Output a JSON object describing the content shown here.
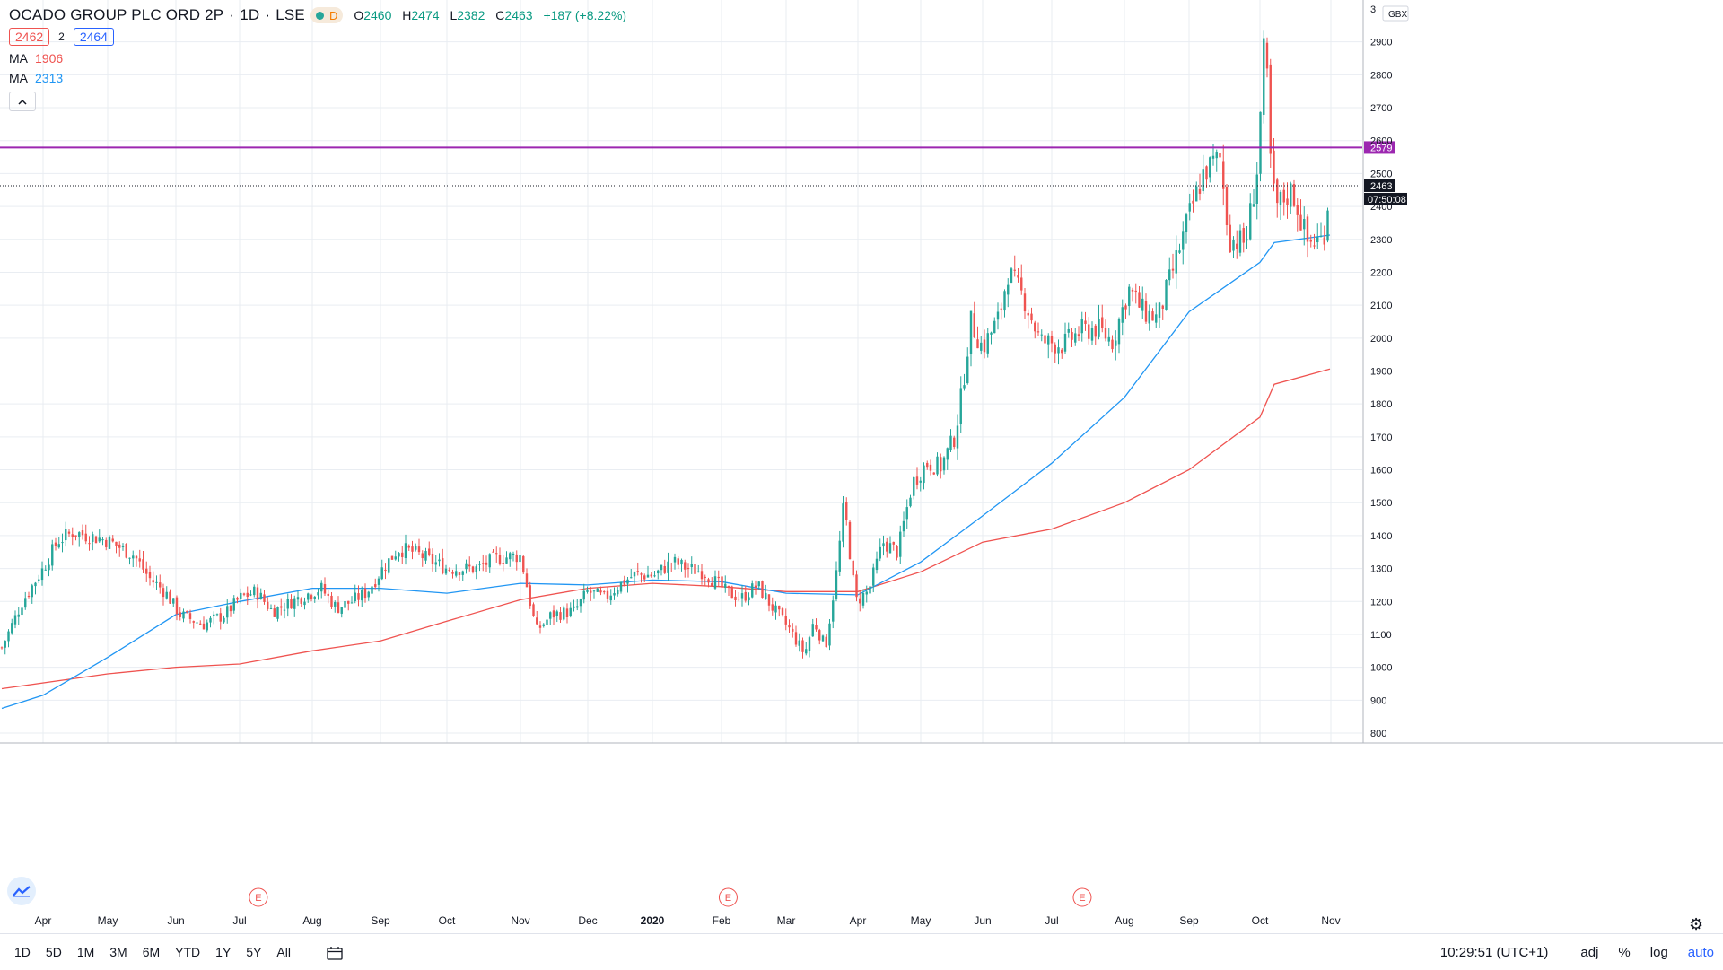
{
  "header": {
    "title": "OCADO GROUP PLC ORD 2P",
    "interval": "1D",
    "exchange": "LSE",
    "status_letter": "D",
    "ohlc": {
      "o_label": "O",
      "o": "2460",
      "h_label": "H",
      "h": "2474",
      "l_label": "L",
      "l": "2382",
      "c_label": "C",
      "c": "2463",
      "change": "+187 (+8.22%)"
    },
    "bid": "2462",
    "spread": "2",
    "ask": "2464"
  },
  "indicators": [
    {
      "label": "MA",
      "value": "1906",
      "color": "#ef5350"
    },
    {
      "label": "MA",
      "value": "2313",
      "color": "#2196f3"
    }
  ],
  "price_axis": {
    "currency": "GBX",
    "clipped_top_label": "3",
    "ticks": [
      "800",
      "900",
      "1000",
      "1100",
      "1200",
      "1300",
      "1400",
      "1500",
      "1600",
      "1700",
      "1800",
      "1900",
      "2000",
      "2100",
      "2200",
      "2300",
      "2400",
      "2500",
      "2600",
      "2700",
      "2800",
      "2900"
    ],
    "last_price_label": "2463",
    "countdown": "07:50:08",
    "hline_label": "2579"
  },
  "time_axis": {
    "labels": [
      "Apr",
      "May",
      "Jun",
      "Jul",
      "Aug",
      "Sep",
      "Oct",
      "Nov",
      "Dec",
      "2020",
      "Feb",
      "Mar",
      "Apr",
      "May",
      "Jun",
      "Jul",
      "Aug",
      "Sep",
      "Oct",
      "Nov"
    ]
  },
  "earnings_marker": "E",
  "toolbar": {
    "ranges": [
      "1D",
      "5D",
      "1M",
      "3M",
      "6M",
      "YTD",
      "1Y",
      "5Y",
      "All"
    ],
    "clock": "10:29:51 (UTC+1)",
    "adj": "adj",
    "percent": "%",
    "log": "log",
    "auto": "auto"
  },
  "colors": {
    "up": "#26a69a",
    "down": "#ef5350",
    "ma_fast": "#2196f3",
    "ma_slow": "#ef5350",
    "hline": "#9c27b0",
    "grid": "#e9edf2"
  },
  "chart_data": {
    "type": "candlestick",
    "symbol": "OCADO GROUP PLC ORD 2P",
    "ylim": [
      770,
      3000
    ],
    "x_labels": [
      "Apr",
      "May",
      "Jun",
      "Jul",
      "Aug",
      "Sep",
      "Oct",
      "Nov",
      "Dec",
      "2020",
      "Feb",
      "Mar",
      "Apr",
      "May",
      "Jun",
      "Jul",
      "Aug",
      "Sep",
      "Oct",
      "Nov"
    ],
    "close_path": [
      {
        "x": "2019-03-18",
        "y": 1060
      },
      {
        "x": "2019-03-25",
        "y": 1200
      },
      {
        "x": "2019-04-01",
        "y": 1300
      },
      {
        "x": "2019-04-08",
        "y": 1385
      },
      {
        "x": "2019-04-15",
        "y": 1410
      },
      {
        "x": "2019-04-22",
        "y": 1400
      },
      {
        "x": "2019-05-01",
        "y": 1385
      },
      {
        "x": "2019-05-13",
        "y": 1340
      },
      {
        "x": "2019-05-20",
        "y": 1270
      },
      {
        "x": "2019-05-27",
        "y": 1230
      },
      {
        "x": "2019-06-03",
        "y": 1160
      },
      {
        "x": "2019-06-14",
        "y": 1130
      },
      {
        "x": "2019-06-24",
        "y": 1160
      },
      {
        "x": "2019-07-01",
        "y": 1210
      },
      {
        "x": "2019-07-08",
        "y": 1230
      },
      {
        "x": "2019-07-15",
        "y": 1170
      },
      {
        "x": "2019-07-26",
        "y": 1210
      },
      {
        "x": "2019-08-05",
        "y": 1240
      },
      {
        "x": "2019-08-12",
        "y": 1180
      },
      {
        "x": "2019-08-19",
        "y": 1200
      },
      {
        "x": "2019-08-26",
        "y": 1230
      },
      {
        "x": "2019-09-02",
        "y": 1300
      },
      {
        "x": "2019-09-09",
        "y": 1360
      },
      {
        "x": "2019-09-16",
        "y": 1350
      },
      {
        "x": "2019-10-01",
        "y": 1300
      },
      {
        "x": "2019-10-14",
        "y": 1300
      },
      {
        "x": "2019-10-21",
        "y": 1330
      },
      {
        "x": "2019-11-01",
        "y": 1340
      },
      {
        "x": "2019-11-08",
        "y": 1110
      },
      {
        "x": "2019-11-15",
        "y": 1160
      },
      {
        "x": "2019-11-25",
        "y": 1170
      },
      {
        "x": "2019-12-01",
        "y": 1230
      },
      {
        "x": "2019-12-09",
        "y": 1210
      },
      {
        "x": "2019-12-16",
        "y": 1250
      },
      {
        "x": "2019-12-23",
        "y": 1280
      },
      {
        "x": "2020-01-02",
        "y": 1280
      },
      {
        "x": "2020-01-10",
        "y": 1320
      },
      {
        "x": "2020-01-17",
        "y": 1300
      },
      {
        "x": "2020-01-24",
        "y": 1290
      },
      {
        "x": "2020-02-03",
        "y": 1230
      },
      {
        "x": "2020-02-10",
        "y": 1210
      },
      {
        "x": "2020-02-17",
        "y": 1250
      },
      {
        "x": "2020-02-24",
        "y": 1180
      },
      {
        "x": "2020-03-02",
        "y": 1120
      },
      {
        "x": "2020-03-09",
        "y": 1040
      },
      {
        "x": "2020-03-13",
        "y": 1140
      },
      {
        "x": "2020-03-18",
        "y": 1060
      },
      {
        "x": "2020-03-23",
        "y": 1300
      },
      {
        "x": "2020-03-26",
        "y": 1500
      },
      {
        "x": "2020-03-31",
        "y": 1200
      },
      {
        "x": "2020-04-06",
        "y": 1230
      },
      {
        "x": "2020-04-13",
        "y": 1380
      },
      {
        "x": "2020-04-20",
        "y": 1350
      },
      {
        "x": "2020-04-27",
        "y": 1560
      },
      {
        "x": "2020-05-04",
        "y": 1620
      },
      {
        "x": "2020-05-11",
        "y": 1610
      },
      {
        "x": "2020-05-18",
        "y": 1700
      },
      {
        "x": "2020-05-22",
        "y": 1850
      },
      {
        "x": "2020-05-26",
        "y": 2050
      },
      {
        "x": "2020-06-01",
        "y": 1970
      },
      {
        "x": "2020-06-08",
        "y": 2060
      },
      {
        "x": "2020-06-12",
        "y": 2200
      },
      {
        "x": "2020-06-19",
        "y": 2120
      },
      {
        "x": "2020-06-26",
        "y": 1990
      },
      {
        "x": "2020-07-06",
        "y": 1980
      },
      {
        "x": "2020-07-13",
        "y": 2020
      },
      {
        "x": "2020-07-20",
        "y": 2030
      },
      {
        "x": "2020-07-27",
        "y": 1990
      },
      {
        "x": "2020-08-03",
        "y": 2150
      },
      {
        "x": "2020-08-10",
        "y": 2080
      },
      {
        "x": "2020-08-17",
        "y": 2060
      },
      {
        "x": "2020-08-24",
        "y": 2200
      },
      {
        "x": "2020-08-31",
        "y": 2350
      },
      {
        "x": "2020-09-07",
        "y": 2500
      },
      {
        "x": "2020-09-14",
        "y": 2550
      },
      {
        "x": "2020-09-18",
        "y": 2300
      },
      {
        "x": "2020-09-25",
        "y": 2290
      },
      {
        "x": "2020-09-30",
        "y": 2520
      },
      {
        "x": "2020-10-05",
        "y": 2760
      },
      {
        "x": "2020-10-09",
        "y": 2860
      },
      {
        "x": "2020-10-14",
        "y": 2860
      },
      {
        "x": "2020-10-19",
        "y": 2700
      },
      {
        "x": "2020-10-26",
        "y": 2470
      },
      {
        "x": "2020-11-02",
        "y": 2400
      },
      {
        "x": "2020-11-09",
        "y": 2450
      },
      {
        "x": "2020-11-16",
        "y": 2290
      },
      {
        "x": "2020-11-23",
        "y": 2300
      },
      {
        "x": "2020-11-26",
        "y": 2463
      }
    ],
    "ma_fast": {
      "name": "MA",
      "last": 2313,
      "path": [
        {
          "x": "2019-03-18",
          "y": 875
        },
        {
          "x": "2019-04-01",
          "y": 915
        },
        {
          "x": "2019-05-01",
          "y": 1030
        },
        {
          "x": "2019-06-01",
          "y": 1160
        },
        {
          "x": "2019-07-01",
          "y": 1200
        },
        {
          "x": "2019-08-01",
          "y": 1240
        },
        {
          "x": "2019-09-01",
          "y": 1240
        },
        {
          "x": "2019-10-01",
          "y": 1225
        },
        {
          "x": "2019-11-01",
          "y": 1255
        },
        {
          "x": "2019-12-01",
          "y": 1250
        },
        {
          "x": "2020-01-01",
          "y": 1265
        },
        {
          "x": "2020-02-01",
          "y": 1260
        },
        {
          "x": "2020-03-01",
          "y": 1225
        },
        {
          "x": "2020-04-01",
          "y": 1220
        },
        {
          "x": "2020-05-01",
          "y": 1320
        },
        {
          "x": "2020-06-01",
          "y": 1460
        },
        {
          "x": "2020-07-01",
          "y": 1620
        },
        {
          "x": "2020-08-01",
          "y": 1820
        },
        {
          "x": "2020-09-01",
          "y": 2080
        },
        {
          "x": "2020-10-01",
          "y": 2230
        },
        {
          "x": "2020-11-01",
          "y": 2290
        },
        {
          "x": "2020-11-26",
          "y": 2313
        }
      ]
    },
    "ma_slow": {
      "name": "MA",
      "last": 1906,
      "path": [
        {
          "x": "2019-03-18",
          "y": 935
        },
        {
          "x": "2019-05-01",
          "y": 980
        },
        {
          "x": "2019-06-01",
          "y": 1000
        },
        {
          "x": "2019-07-01",
          "y": 1010
        },
        {
          "x": "2019-08-01",
          "y": 1050
        },
        {
          "x": "2019-09-01",
          "y": 1080
        },
        {
          "x": "2019-10-01",
          "y": 1140
        },
        {
          "x": "2019-11-01",
          "y": 1205
        },
        {
          "x": "2019-12-01",
          "y": 1240
        },
        {
          "x": "2020-01-01",
          "y": 1255
        },
        {
          "x": "2020-02-01",
          "y": 1245
        },
        {
          "x": "2020-03-01",
          "y": 1230
        },
        {
          "x": "2020-04-01",
          "y": 1230
        },
        {
          "x": "2020-05-01",
          "y": 1290
        },
        {
          "x": "2020-06-01",
          "y": 1380
        },
        {
          "x": "2020-07-01",
          "y": 1420
        },
        {
          "x": "2020-08-01",
          "y": 1500
        },
        {
          "x": "2020-09-01",
          "y": 1600
        },
        {
          "x": "2020-10-01",
          "y": 1760
        },
        {
          "x": "2020-11-01",
          "y": 1860
        },
        {
          "x": "2020-11-26",
          "y": 1906
        }
      ]
    },
    "horizontal_line": 2579,
    "last_price": 2463,
    "earnings_dates": [
      "2019-07-09",
      "2020-02-04",
      "2020-07-14"
    ]
  }
}
